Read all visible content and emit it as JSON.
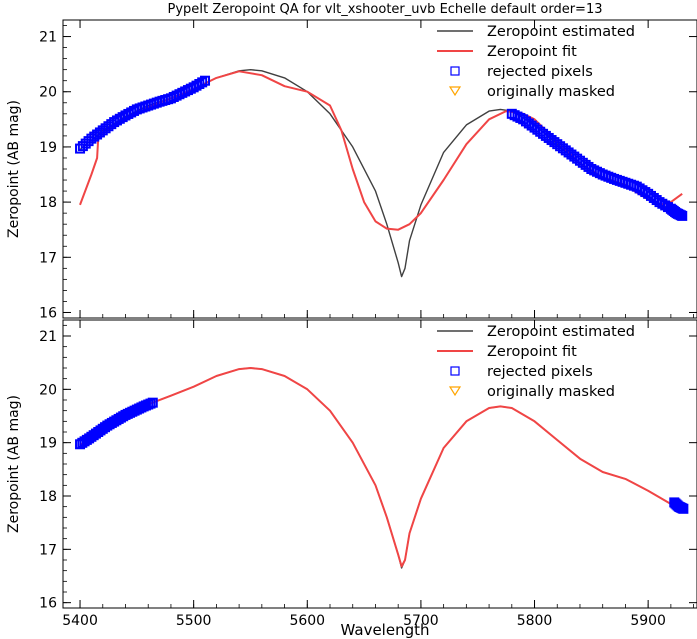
{
  "title": "PypeIt Zeropoint QA for vlt_xshooter_uvb Echelle default order=13",
  "xlabel": "Wavelength",
  "colors": {
    "estimated": "#404040",
    "fit": "#f04545",
    "rejected": "#0000ff",
    "masked": "#ffa500"
  },
  "chart_data": [
    {
      "type": "line",
      "ylabel": "Zeropoint (AB mag)",
      "xlim": [
        5385,
        5943
      ],
      "ylim": [
        15.9,
        21.3
      ],
      "xticks": [
        5400,
        5500,
        5600,
        5700,
        5800,
        5900
      ],
      "yticks": [
        16,
        17,
        18,
        19,
        20,
        21
      ],
      "legend": {
        "position": "top-right",
        "entries": [
          "Zeropoint estimated",
          "Zeropoint fit",
          "rejected pixels",
          "originally masked"
        ]
      },
      "series": [
        {
          "name": "Zeropoint estimated",
          "x": [
            5400,
            5420,
            5440,
            5460,
            5480,
            5500,
            5520,
            5540,
            5550,
            5560,
            5580,
            5600,
            5620,
            5640,
            5660,
            5670,
            5680,
            5683,
            5686,
            5690,
            5700,
            5720,
            5740,
            5760,
            5770,
            5780,
            5800,
            5820,
            5840,
            5860,
            5880,
            5900,
            5920,
            5930
          ],
          "y": [
            18.95,
            19.3,
            19.55,
            19.75,
            19.88,
            20.05,
            20.25,
            20.38,
            20.4,
            20.38,
            20.25,
            20.0,
            19.6,
            19.0,
            18.2,
            17.6,
            16.9,
            16.65,
            16.8,
            17.3,
            17.95,
            18.9,
            19.4,
            19.65,
            19.68,
            19.65,
            19.4,
            19.05,
            18.7,
            18.45,
            18.32,
            18.1,
            17.85,
            17.75
          ]
        },
        {
          "name": "Zeropoint fit",
          "x": [
            5400,
            5410,
            5415,
            5416,
            5420,
            5440,
            5460,
            5480,
            5500,
            5520,
            5540,
            5560,
            5580,
            5600,
            5620,
            5630,
            5640,
            5650,
            5660,
            5670,
            5680,
            5690,
            5700,
            5720,
            5740,
            5760,
            5775,
            5790,
            5800,
            5820,
            5840,
            5860,
            5880,
            5900,
            5910,
            5920,
            5930
          ],
          "y": [
            17.95,
            18.5,
            18.8,
            19.15,
            19.25,
            19.5,
            19.72,
            19.88,
            20.05,
            20.25,
            20.37,
            20.3,
            20.1,
            20.0,
            19.75,
            19.3,
            18.6,
            18.0,
            17.65,
            17.52,
            17.5,
            17.6,
            17.8,
            18.4,
            19.05,
            19.5,
            19.65,
            19.6,
            19.5,
            19.1,
            18.7,
            18.45,
            18.3,
            18.05,
            17.95,
            18.0,
            18.15
          ]
        },
        {
          "name": "rejected pixels",
          "segments": [
            {
              "x": [
                5400,
                5410,
                5420,
                5430,
                5440,
                5450,
                5460,
                5470,
                5480,
                5490,
                5500,
                5510
              ],
              "y": [
                18.97,
                19.15,
                19.3,
                19.45,
                19.57,
                19.68,
                19.75,
                19.82,
                19.88,
                19.98,
                20.08,
                20.2
              ]
            },
            {
              "x": [
                5780,
                5790,
                5800,
                5810,
                5820,
                5830,
                5840,
                5850,
                5860,
                5870,
                5880,
                5890,
                5900,
                5910,
                5920,
                5925,
                5930
              ],
              "y": [
                19.6,
                19.5,
                19.35,
                19.2,
                19.05,
                18.9,
                18.75,
                18.6,
                18.5,
                18.42,
                18.35,
                18.28,
                18.15,
                18.0,
                17.88,
                17.8,
                17.75
              ]
            }
          ]
        },
        {
          "name": "originally masked",
          "x": [],
          "y": []
        }
      ]
    },
    {
      "type": "line",
      "ylabel": "Zeropoint (AB mag)",
      "xlim": [
        5385,
        5943
      ],
      "ylim": [
        15.9,
        21.3
      ],
      "xticks": [
        5400,
        5500,
        5600,
        5700,
        5800,
        5900
      ],
      "yticks": [
        16,
        17,
        18,
        19,
        20,
        21
      ],
      "legend": {
        "position": "top-right",
        "entries": [
          "Zeropoint estimated",
          "Zeropoint fit",
          "rejected pixels",
          "originally masked"
        ]
      },
      "series": [
        {
          "name": "Zeropoint estimated",
          "x": [
            5400,
            5420,
            5440,
            5460,
            5480,
            5500,
            5520,
            5540,
            5550,
            5560,
            5580,
            5600,
            5620,
            5640,
            5660,
            5670,
            5680,
            5683,
            5686,
            5690,
            5700,
            5720,
            5740,
            5760,
            5770,
            5780,
            5800,
            5820,
            5840,
            5860,
            5880,
            5900,
            5920,
            5930
          ],
          "y": [
            18.95,
            19.25,
            19.52,
            19.72,
            19.88,
            20.05,
            20.25,
            20.38,
            20.4,
            20.38,
            20.25,
            20.0,
            19.6,
            19.0,
            18.2,
            17.6,
            16.9,
            16.65,
            16.8,
            17.3,
            17.95,
            18.9,
            19.4,
            19.65,
            19.68,
            19.65,
            19.4,
            19.05,
            18.7,
            18.45,
            18.32,
            18.1,
            17.85,
            17.75
          ]
        },
        {
          "name": "Zeropoint fit",
          "x": [
            5400,
            5420,
            5440,
            5460,
            5480,
            5500,
            5520,
            5540,
            5550,
            5560,
            5580,
            5600,
            5620,
            5640,
            5660,
            5670,
            5680,
            5683,
            5686,
            5690,
            5700,
            5720,
            5740,
            5760,
            5770,
            5780,
            5800,
            5820,
            5840,
            5860,
            5880,
            5900,
            5920,
            5930
          ],
          "y": [
            18.95,
            19.25,
            19.52,
            19.72,
            19.88,
            20.05,
            20.25,
            20.38,
            20.4,
            20.38,
            20.25,
            20.0,
            19.6,
            19.0,
            18.2,
            17.6,
            16.9,
            16.68,
            16.8,
            17.3,
            17.95,
            18.9,
            19.4,
            19.65,
            19.68,
            19.65,
            19.4,
            19.05,
            18.7,
            18.45,
            18.32,
            18.1,
            17.85,
            17.75
          ]
        },
        {
          "name": "rejected pixels",
          "segments": [
            {
              "x": [
                5400,
                5408,
                5416,
                5424,
                5432,
                5440,
                5448,
                5456,
                5464
              ],
              "y": [
                18.97,
                19.08,
                19.2,
                19.32,
                19.42,
                19.52,
                19.6,
                19.68,
                19.75
              ]
            },
            {
              "x": [
                5923,
                5927,
                5931
              ],
              "y": [
                17.88,
                17.8,
                17.76
              ]
            }
          ]
        },
        {
          "name": "originally masked",
          "x": [],
          "y": []
        }
      ]
    }
  ]
}
